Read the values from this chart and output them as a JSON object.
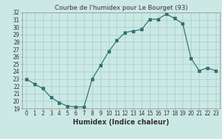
{
  "x": [
    0,
    1,
    2,
    3,
    4,
    5,
    6,
    7,
    8,
    9,
    10,
    11,
    12,
    13,
    14,
    15,
    16,
    17,
    18,
    19,
    20,
    21,
    22,
    23
  ],
  "y": [
    23.0,
    22.3,
    21.7,
    20.5,
    19.8,
    19.3,
    19.2,
    19.2,
    23.0,
    24.8,
    26.7,
    28.2,
    29.3,
    29.5,
    29.7,
    31.1,
    31.1,
    31.8,
    31.2,
    30.5,
    25.8,
    24.1,
    24.5,
    24.1
  ],
  "title": "Courbe de l'humidex pour Le Bourget (93)",
  "xlabel": "Humidex (Indice chaleur)",
  "ylim": [
    19,
    32
  ],
  "xlim_min": -0.5,
  "xlim_max": 23.5,
  "yticks": [
    19,
    20,
    21,
    22,
    23,
    24,
    25,
    26,
    27,
    28,
    29,
    30,
    31,
    32
  ],
  "xticks": [
    0,
    1,
    2,
    3,
    4,
    5,
    6,
    7,
    8,
    9,
    10,
    11,
    12,
    13,
    14,
    15,
    16,
    17,
    18,
    19,
    20,
    21,
    22,
    23
  ],
  "line_color": "#2d7070",
  "marker": "s",
  "marker_size": 2.5,
  "bg_color": "#cce8e4",
  "grid_color": "#9ececa",
  "title_fontsize": 6.5,
  "label_fontsize": 7,
  "tick_fontsize": 5.5
}
